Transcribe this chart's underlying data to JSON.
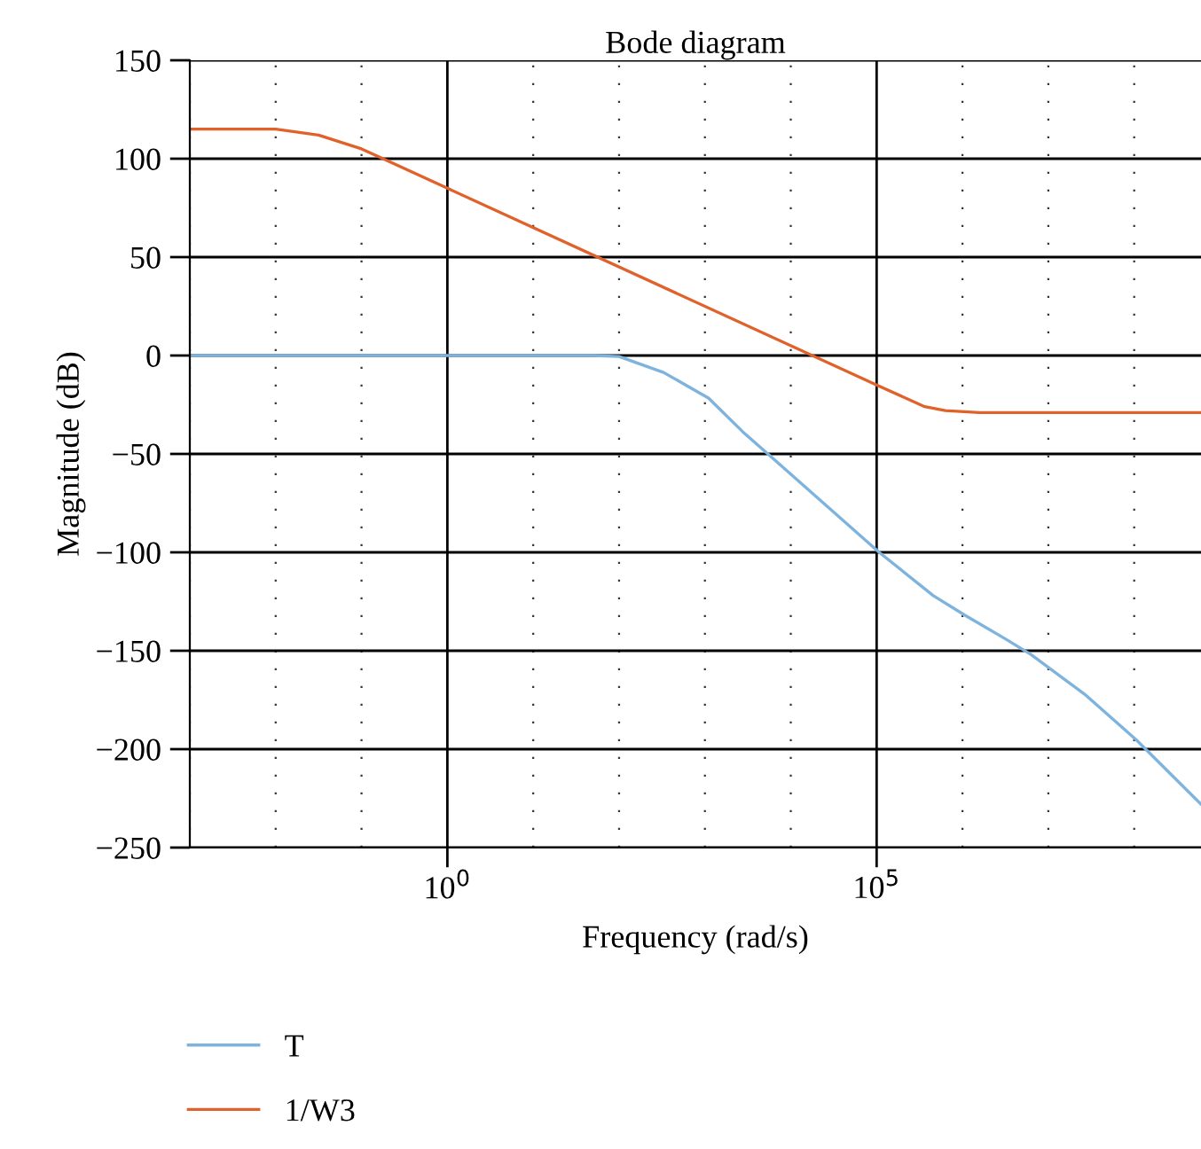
{
  "chart_data": {
    "type": "line",
    "title": "Bode diagram",
    "xlabel": "Frequency (rad/s)",
    "ylabel": "Magnitude (dB)",
    "log": "x",
    "xlim": [
      0.001,
      600000000
    ],
    "xticks": [
      {
        "value": 1,
        "label": "10$^{0}$"
      },
      {
        "value": 100000,
        "label": "10$^{5}$"
      }
    ],
    "ylim": [
      -250,
      150
    ],
    "yticks": [
      -250,
      -200,
      -150,
      -100,
      -50,
      0,
      50,
      100,
      150
    ],
    "grid": true,
    "legend": "bottom",
    "line_style": "solid",
    "marker": "none",
    "series": [
      {
        "name": "T",
        "color": "#7eb3dd",
        "x": [
          0.001,
          1,
          50,
          100,
          330,
          1100,
          2750,
          5750,
          107000,
          457000,
          1070000,
          3160000,
          6300000,
          26300000,
          107000000,
          600000000
        ],
        "values": [
          0,
          0,
          0,
          -0.5,
          -8.6,
          -21.6,
          -38.7,
          -51,
          -100,
          -122,
          -132,
          -144,
          -152,
          -172,
          -195.5,
          -228
        ]
      },
      {
        "name": "1/W3",
        "color": "#e0622a",
        "x": [
          0.001,
          0.01,
          0.0316,
          0.1,
          0.178,
          1,
          100000,
          363000,
          631000,
          1580000,
          600000000
        ],
        "values": [
          115,
          115,
          112,
          105,
          100,
          85,
          -15,
          -26,
          -28,
          -29,
          -29
        ]
      }
    ]
  }
}
